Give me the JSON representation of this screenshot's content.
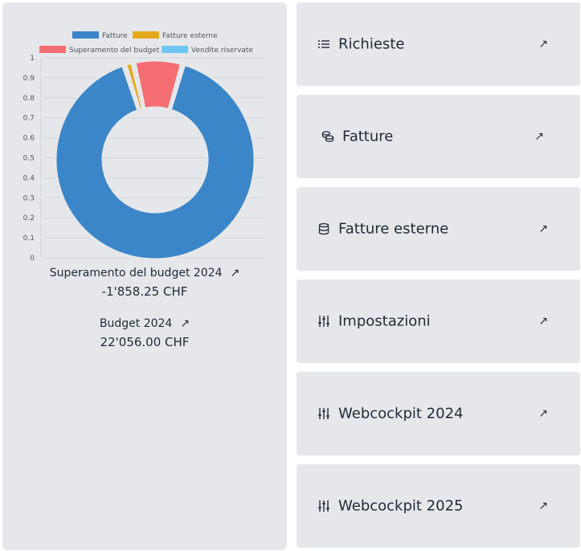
{
  "chart_data": {
    "type": "pie",
    "variant": "doughnut",
    "legend": [
      "Fatture",
      "Fatture esterne",
      "Superamento del budget",
      "Vendite riservate"
    ],
    "legend_placement": "top",
    "series": [
      {
        "name": "Fatture",
        "value": 0.905,
        "color": "#3b86c8"
      },
      {
        "name": "Fatture esterne",
        "value": 0.015,
        "color": "#e4a91a"
      },
      {
        "name": "Superamento del budget",
        "value": 0.08,
        "color": "#f46e72"
      },
      {
        "name": "Vendite riservate",
        "value": 0.0,
        "color": "#6fc6f2"
      }
    ],
    "y_ticks": [
      "1",
      "0.9",
      "0.8",
      "0.7",
      "0.6",
      "0.5",
      "0.4",
      "0.3",
      "0.2",
      "0.1",
      "0"
    ],
    "ylim": [
      0,
      1
    ],
    "grid": true
  },
  "overrun": {
    "label": "Superamento del budget 2024",
    "value": "-1'858.25 CHF"
  },
  "budget": {
    "label": "Budget 2024",
    "value": "22'056.00 CHF"
  },
  "nav": [
    {
      "label": "Richieste",
      "icon": "list-icon"
    },
    {
      "label": "Fatture",
      "icon": "coins-icon"
    },
    {
      "label": "Fatture esterne",
      "icon": "database-icon"
    },
    {
      "label": "Impostazioni",
      "icon": "sliders-icon"
    },
    {
      "label": "Webcockpit 2024",
      "icon": "sliders-icon"
    },
    {
      "label": "Webcockpit 2025",
      "icon": "sliders-icon"
    }
  ],
  "arrow_glyph": "↗"
}
